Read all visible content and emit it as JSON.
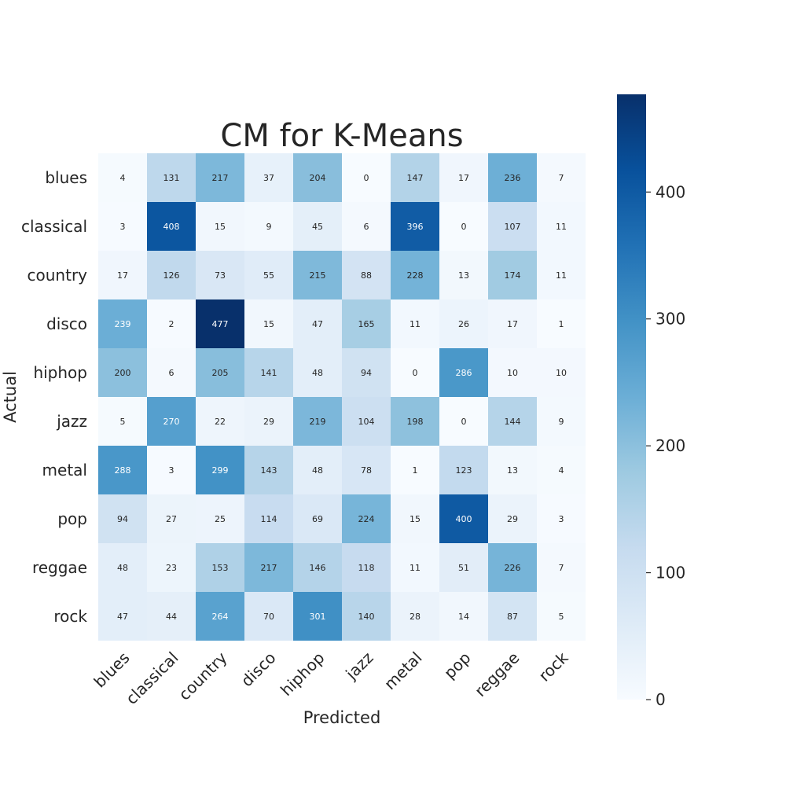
{
  "chart_data": {
    "type": "heatmap",
    "title": "CM for K-Means",
    "xlabel": "Predicted",
    "ylabel": "Actual",
    "x_categories": [
      "blues",
      "classical",
      "country",
      "disco",
      "hiphop",
      "jazz",
      "metal",
      "pop",
      "reggae",
      "rock"
    ],
    "y_categories": [
      "blues",
      "classical",
      "country",
      "disco",
      "hiphop",
      "jazz",
      "metal",
      "pop",
      "reggae",
      "rock"
    ],
    "values": [
      [
        4,
        131,
        217,
        37,
        204,
        0,
        147,
        17,
        236,
        7
      ],
      [
        3,
        408,
        15,
        9,
        45,
        6,
        396,
        0,
        107,
        11
      ],
      [
        17,
        126,
        73,
        55,
        215,
        88,
        228,
        13,
        174,
        11
      ],
      [
        239,
        2,
        477,
        15,
        47,
        165,
        11,
        26,
        17,
        1
      ],
      [
        200,
        6,
        205,
        141,
        48,
        94,
        0,
        286,
        10,
        10
      ],
      [
        5,
        270,
        22,
        29,
        219,
        104,
        198,
        0,
        144,
        9
      ],
      [
        288,
        3,
        299,
        143,
        48,
        78,
        1,
        123,
        13,
        4
      ],
      [
        94,
        27,
        25,
        114,
        69,
        224,
        15,
        400,
        29,
        3
      ],
      [
        48,
        23,
        153,
        217,
        146,
        118,
        11,
        51,
        226,
        7
      ],
      [
        47,
        44,
        264,
        70,
        301,
        140,
        28,
        14,
        87,
        5
      ]
    ],
    "colormap": "Blues",
    "colorbar": {
      "range": [
        0,
        477
      ],
      "ticks": [
        0,
        100,
        200,
        300,
        400
      ]
    },
    "grid": false
  }
}
